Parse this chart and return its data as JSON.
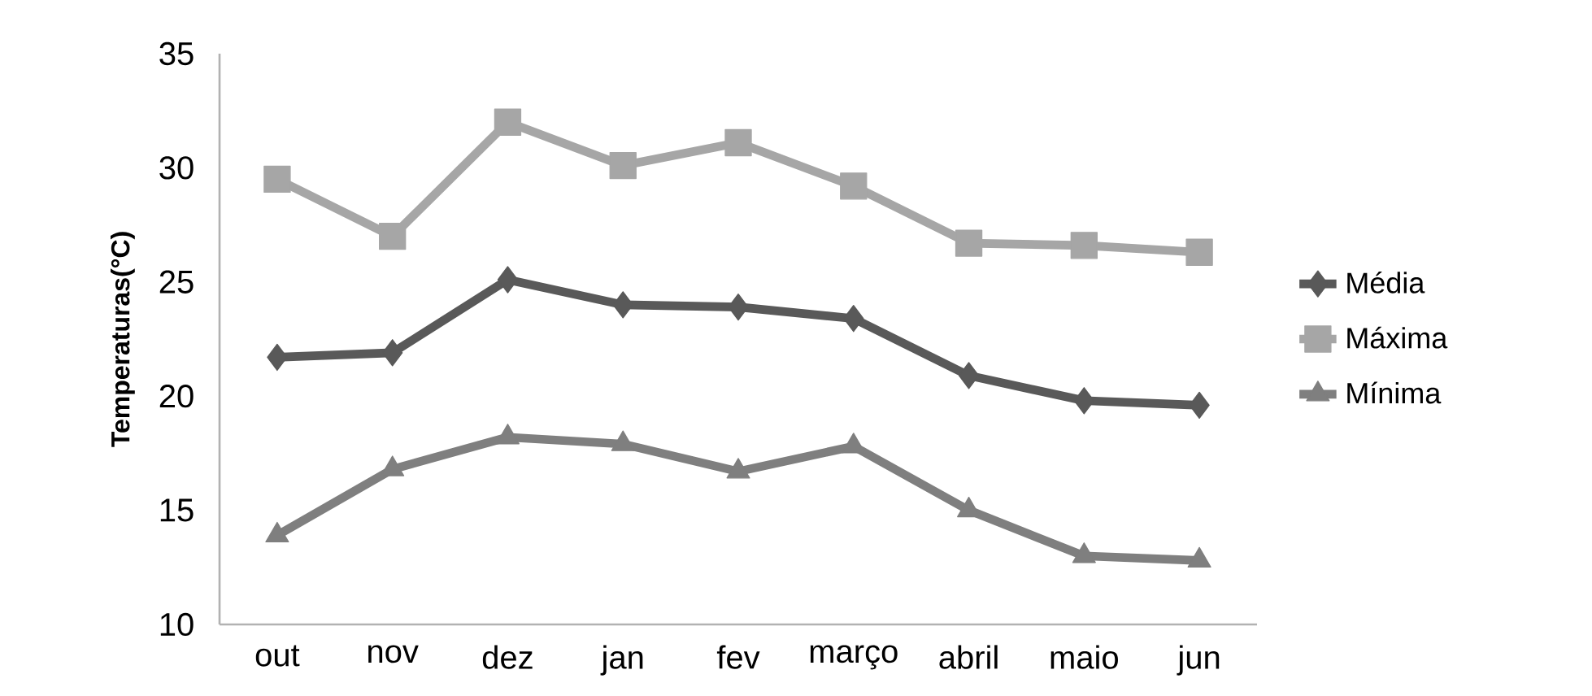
{
  "chart_data": {
    "type": "line",
    "ylabel": "Temperaturas(°C)",
    "categories": [
      "out",
      "nov",
      "dez",
      "jan",
      "fev",
      "março",
      "abril",
      "maio",
      "jun"
    ],
    "series": [
      {
        "name": "Média",
        "color": "#595959",
        "marker": "diamond",
        "values": [
          21.7,
          21.9,
          25.1,
          24.0,
          23.9,
          23.4,
          20.9,
          19.8,
          19.6
        ]
      },
      {
        "name": "Máxima",
        "color": "#a6a6a6",
        "marker": "square",
        "values": [
          29.5,
          27.0,
          32.0,
          30.1,
          31.1,
          29.2,
          26.7,
          26.6,
          26.3
        ]
      },
      {
        "name": "Mínima",
        "color": "#7f7f7f",
        "marker": "triangle",
        "values": [
          13.9,
          16.8,
          18.2,
          17.9,
          16.7,
          17.8,
          15.0,
          13.0,
          12.8
        ]
      }
    ],
    "ylim": [
      10,
      35
    ],
    "yticks": [
      10,
      15,
      20,
      25,
      30,
      35
    ],
    "grid": false,
    "legend": "right",
    "line_style": "solid"
  }
}
